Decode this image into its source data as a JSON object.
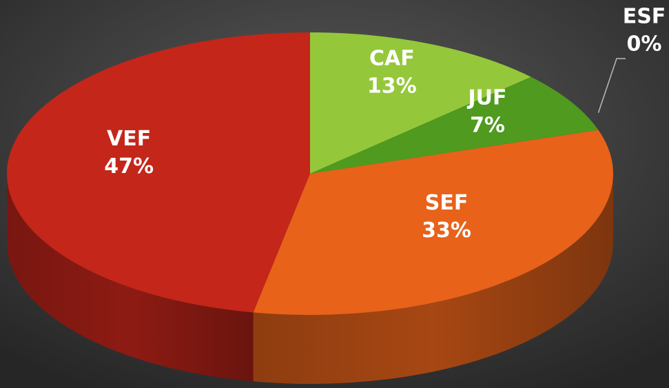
{
  "chart_data": {
    "type": "pie",
    "categories": [
      "CAF",
      "JUF",
      "ESF",
      "SEF",
      "VEF"
    ],
    "values": [
      13,
      7,
      0,
      33,
      47
    ],
    "value_labels": [
      "13%",
      "7%",
      "0%",
      "33%",
      "47%"
    ],
    "colors": [
      "#94c83a",
      "#4f9a1f",
      "#e0a030",
      "#e8621a",
      "#c4261a"
    ]
  }
}
